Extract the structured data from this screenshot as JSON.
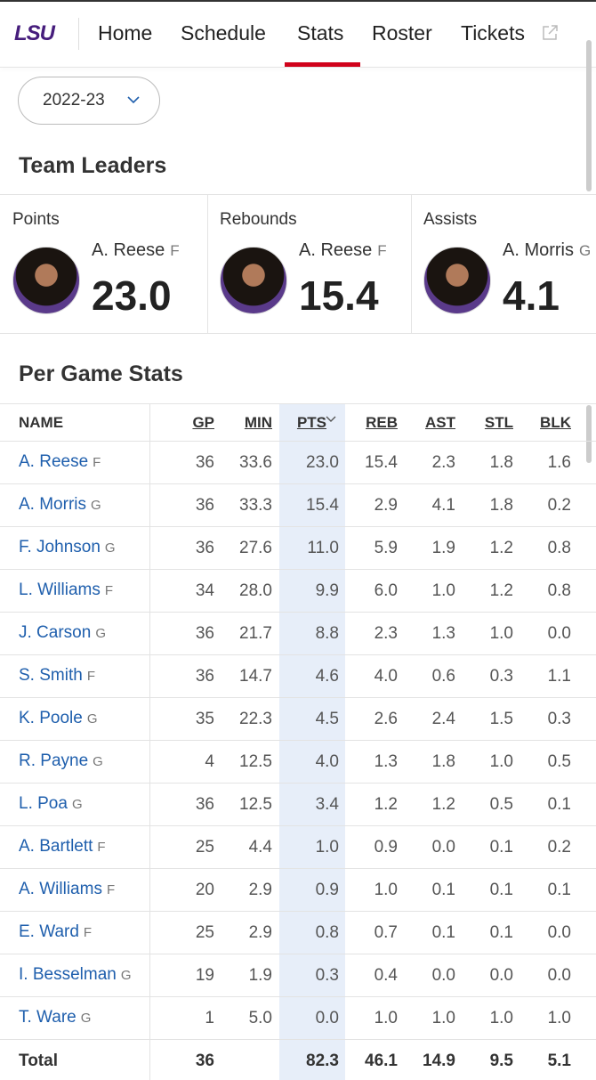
{
  "nav": {
    "logo": "LSU",
    "items": [
      "Home",
      "Schedule",
      "Stats",
      "Roster",
      "Tickets"
    ]
  },
  "season": "2022-23",
  "team_leaders": {
    "title": "Team Leaders",
    "cards": [
      {
        "stat": "Points",
        "player": "A. Reese",
        "pos": "F",
        "value": "23.0"
      },
      {
        "stat": "Rebounds",
        "player": "A. Reese",
        "pos": "F",
        "value": "15.4"
      },
      {
        "stat": "Assists",
        "player": "A. Morris",
        "pos": "G",
        "value": "4.1"
      }
    ]
  },
  "per_game": {
    "title": "Per Game Stats",
    "columns": [
      "NAME",
      "GP",
      "MIN",
      "PTS",
      "REB",
      "AST",
      "STL",
      "BLK"
    ],
    "rows": [
      {
        "name": "A. Reese",
        "pos": "F",
        "stats": [
          "36",
          "33.6",
          "23.0",
          "15.4",
          "2.3",
          "1.8",
          "1.6"
        ]
      },
      {
        "name": "A. Morris",
        "pos": "G",
        "stats": [
          "36",
          "33.3",
          "15.4",
          "2.9",
          "4.1",
          "1.8",
          "0.2"
        ]
      },
      {
        "name": "F. Johnson",
        "pos": "G",
        "stats": [
          "36",
          "27.6",
          "11.0",
          "5.9",
          "1.9",
          "1.2",
          "0.8"
        ]
      },
      {
        "name": "L. Williams",
        "pos": "F",
        "stats": [
          "34",
          "28.0",
          "9.9",
          "6.0",
          "1.0",
          "1.2",
          "0.8"
        ]
      },
      {
        "name": "J. Carson",
        "pos": "G",
        "stats": [
          "36",
          "21.7",
          "8.8",
          "2.3",
          "1.3",
          "1.0",
          "0.0"
        ]
      },
      {
        "name": "S. Smith",
        "pos": "F",
        "stats": [
          "36",
          "14.7",
          "4.6",
          "4.0",
          "0.6",
          "0.3",
          "1.1"
        ]
      },
      {
        "name": "K. Poole",
        "pos": "G",
        "stats": [
          "35",
          "22.3",
          "4.5",
          "2.6",
          "2.4",
          "1.5",
          "0.3"
        ]
      },
      {
        "name": "R. Payne",
        "pos": "G",
        "stats": [
          "4",
          "12.5",
          "4.0",
          "1.3",
          "1.8",
          "1.0",
          "0.5"
        ]
      },
      {
        "name": "L. Poa",
        "pos": "G",
        "stats": [
          "36",
          "12.5",
          "3.4",
          "1.2",
          "1.2",
          "0.5",
          "0.1"
        ]
      },
      {
        "name": "A. Bartlett",
        "pos": "F",
        "stats": [
          "25",
          "4.4",
          "1.0",
          "0.9",
          "0.0",
          "0.1",
          "0.2"
        ]
      },
      {
        "name": "A. Williams",
        "pos": "F",
        "stats": [
          "20",
          "2.9",
          "0.9",
          "1.0",
          "0.1",
          "0.1",
          "0.1"
        ]
      },
      {
        "name": "E. Ward",
        "pos": "F",
        "stats": [
          "25",
          "2.9",
          "0.8",
          "0.7",
          "0.1",
          "0.1",
          "0.0"
        ]
      },
      {
        "name": "I. Besselman",
        "pos": "G",
        "stats": [
          "19",
          "1.9",
          "0.3",
          "0.4",
          "0.0",
          "0.0",
          "0.0"
        ]
      },
      {
        "name": "T. Ware",
        "pos": "G",
        "stats": [
          "1",
          "5.0",
          "0.0",
          "1.0",
          "1.0",
          "1.0",
          "1.0"
        ]
      }
    ],
    "total": {
      "label": "Total",
      "GP": "36",
      "PTS": "82.3",
      "REB": "46.1",
      "AST": "14.9",
      "STL": "9.5",
      "BLK": "5.1"
    }
  }
}
